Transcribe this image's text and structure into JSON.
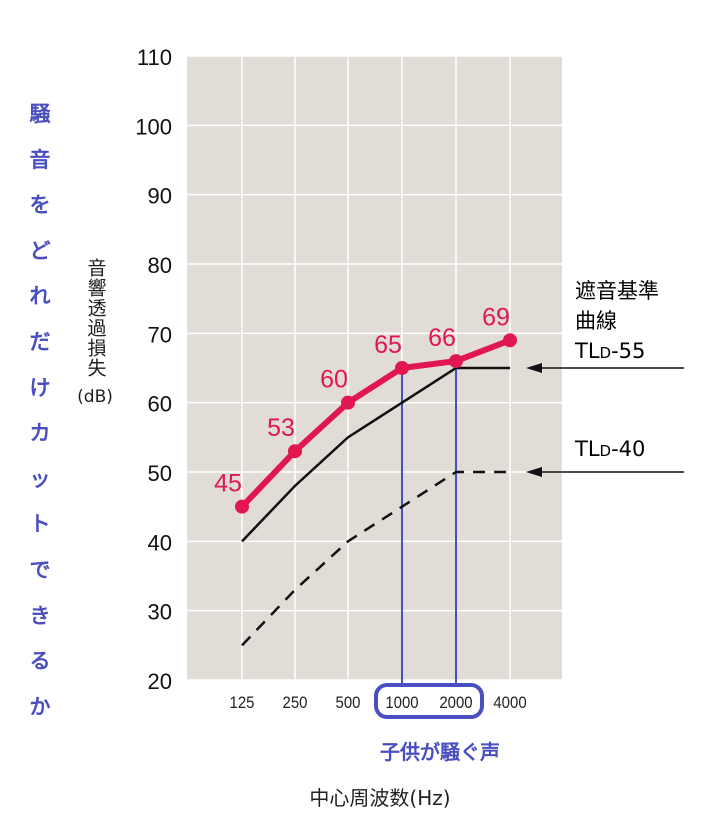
{
  "side_caption": [
    "騒",
    "音",
    "を",
    "ど",
    "れ",
    "だ",
    "け",
    "カ",
    "ッ",
    "ト",
    "で",
    "き",
    "る",
    "か"
  ],
  "y_label": {
    "text": "音響透過損失",
    "unit": "(dB)"
  },
  "x_label": "中心周波数(Hz)",
  "highlight_label": "子供が騒ぐ声",
  "annotation_55": {
    "line1": "遮音基準",
    "line2": "曲線",
    "prefix": "TL",
    "sub": "D",
    "suffix": "-55"
  },
  "annotation_40": {
    "prefix": "TL",
    "sub": "D",
    "suffix": "-40"
  },
  "chart_data": {
    "type": "line",
    "categories": [
      "125",
      "250",
      "500",
      "1000",
      "2000",
      "4000"
    ],
    "ylim": [
      20,
      110
    ],
    "y_ticks": [
      20,
      30,
      40,
      50,
      60,
      70,
      80,
      90,
      100,
      110
    ],
    "grid": true,
    "highlight_categories": [
      "1000",
      "2000"
    ],
    "series": [
      {
        "key": "measured",
        "values": [
          45,
          53,
          60,
          65,
          66,
          69
        ],
        "data_labels": [
          "45",
          "53",
          "60",
          "65",
          "66",
          "69"
        ],
        "color": "#e0184f"
      },
      {
        "name": "TLD-55",
        "values": [
          40,
          48,
          55,
          60,
          65,
          65
        ],
        "color": "#111111",
        "style": "solid"
      },
      {
        "name": "TLD-40",
        "values": [
          25,
          33,
          40,
          45,
          50,
          50
        ],
        "color": "#111111",
        "style": "dashed"
      }
    ]
  },
  "colors": {
    "plot_bg": "#e2dcd7",
    "grid": "#ffffff",
    "accent_blue": "#4a4fbf",
    "accent_red": "#e0184f"
  }
}
